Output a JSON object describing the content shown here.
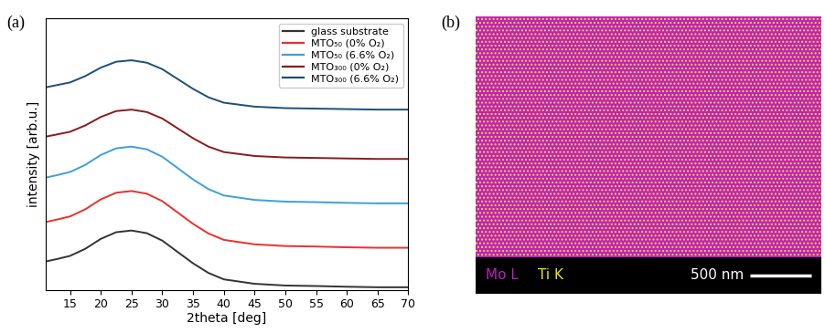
{
  "chart_data": {
    "type": "line",
    "panel_label": "(a)",
    "x_label": "2theta [deg]",
    "y_label": "intensity [arb.u.]",
    "x": [
      11,
      13,
      15,
      17.5,
      20,
      22.5,
      25,
      27.5,
      30,
      32.5,
      35,
      37.5,
      40,
      45,
      50,
      55,
      60,
      65,
      70
    ],
    "series": [
      {
        "name": "glass substrate",
        "color": "#333333",
        "values": [
          11.4,
          12.5,
          13.7,
          16.6,
          20.6,
          23.3,
          24.0,
          22.9,
          19.9,
          15.3,
          10.7,
          6.8,
          4.2,
          2.4,
          1.7,
          1.5,
          1.2,
          1.0,
          1.0
        ]
      },
      {
        "name": "MTO₅₀ (0% O₂)",
        "color": "#e8312a",
        "values": [
          27.4,
          28.5,
          29.7,
          32.6,
          36.6,
          39.3,
          40.0,
          38.9,
          35.9,
          31.3,
          26.7,
          22.8,
          20.2,
          18.4,
          17.7,
          17.5,
          17.2,
          17.0,
          17.0
        ]
      },
      {
        "name": "MTO₅₀ (6.6% O₂)",
        "color": "#3f9fd6",
        "values": [
          45.4,
          46.5,
          47.7,
          50.6,
          54.6,
          57.3,
          58.0,
          56.9,
          53.9,
          49.3,
          44.7,
          40.8,
          38.2,
          36.4,
          35.7,
          35.5,
          35.2,
          35.0,
          35.0
        ]
      },
      {
        "name": "MTO₃₀₀ (0% O₂)",
        "color": "#8b1a1a",
        "values": [
          62.0,
          63.0,
          64.0,
          66.6,
          70.0,
          72.4,
          73.0,
          72.0,
          69.4,
          65.4,
          61.4,
          58.0,
          55.8,
          54.2,
          53.6,
          53.4,
          53.2,
          53.0,
          53.0
        ]
      },
      {
        "name": "MTO₃₀₀ (6.6% O₂)",
        "color": "#1d4e78",
        "values": [
          82.0,
          83.0,
          84.0,
          86.6,
          90.0,
          92.4,
          93.0,
          92.0,
          89.4,
          85.4,
          81.4,
          78.0,
          75.8,
          74.2,
          73.6,
          73.4,
          73.2,
          73.0,
          73.0
        ]
      }
    ],
    "xlim": [
      11,
      70
    ],
    "xticks": [
      15,
      20,
      25,
      30,
      35,
      40,
      45,
      50,
      55,
      60,
      65,
      70
    ],
    "ylim": [
      0,
      110
    ],
    "tick_labels": "x",
    "legend": "upper right",
    "grid": false
  },
  "image_panel": {
    "panel_label": "(b)",
    "type": "EDS map",
    "elements": [
      {
        "name": "Mo L",
        "color": "#c21fc2"
      },
      {
        "name": "Ti K",
        "color": "#e6e61a"
      }
    ],
    "scale_bar": {
      "label": "500 nm",
      "length": 500
    },
    "field_width": 2840
  }
}
